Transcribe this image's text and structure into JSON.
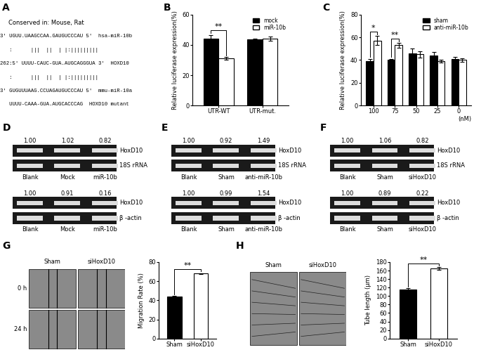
{
  "chart_data": [
    {
      "panel": "B",
      "type": "bar",
      "ylabel": "Relative luciferase expression(%)",
      "categories": [
        "UTR-WT",
        "UTR-mut."
      ],
      "series": [
        {
          "name": "mock",
          "color": "#000000",
          "values": [
            44,
            43.5
          ],
          "error": [
            2.5,
            0.8
          ]
        },
        {
          "name": "miR-10b",
          "color": "#ffffff",
          "values": [
            31,
            44
          ],
          "error": [
            1,
            1.5
          ]
        }
      ],
      "ylim": [
        0,
        60
      ],
      "yticks": [
        0,
        20,
        40,
        60
      ],
      "legend": "upper right",
      "annotations": [
        {
          "text": "**",
          "category": "UTR-WT"
        }
      ]
    },
    {
      "panel": "C",
      "type": "bar",
      "ylabel": "Relative luciferase expression(%)",
      "xlabel": "(nM)",
      "categories": [
        "100",
        "75",
        "50",
        "25",
        "0"
      ],
      "series": [
        {
          "name": "sham",
          "color": "#000000",
          "values": [
            39,
            40,
            46,
            44,
            41
          ],
          "error": [
            2,
            1,
            4,
            3,
            2
          ]
        },
        {
          "name": "anti-miR-10b",
          "color": "#ffffff",
          "values": [
            57,
            53,
            45,
            39,
            40
          ],
          "error": [
            4,
            2,
            3,
            1,
            1.5
          ]
        }
      ],
      "ylim": [
        0,
        80
      ],
      "yticks": [
        0,
        20,
        40,
        60,
        80
      ],
      "legend": "upper right",
      "annotations": [
        {
          "text": "*",
          "category": "100"
        },
        {
          "text": "**",
          "category": "75"
        }
      ]
    },
    {
      "panel": "G",
      "type": "bar",
      "ylabel": "Migration Rate (%)",
      "categories": [
        "Sham",
        "siHoxD10"
      ],
      "series": [
        {
          "colors": [
            "#000000",
            "#ffffff"
          ],
          "values": [
            44,
            68
          ],
          "error": [
            0.5,
            0.5
          ]
        }
      ],
      "ylim": [
        0,
        80
      ],
      "yticks": [
        0,
        20,
        40,
        60,
        80
      ],
      "annotations": [
        {
          "text": "**",
          "between": [
            "Sham",
            "siHoxD10"
          ]
        }
      ]
    },
    {
      "panel": "H",
      "type": "bar",
      "ylabel": "Tube length (μm)",
      "categories": [
        "Sham",
        "siHoxD10"
      ],
      "series": [
        {
          "colors": [
            "#000000",
            "#ffffff"
          ],
          "values": [
            115,
            165
          ],
          "error": [
            4,
            3
          ]
        }
      ],
      "ylim": [
        0,
        180
      ],
      "yticks": [
        0,
        20,
        40,
        60,
        80,
        100,
        120,
        140,
        160,
        180
      ],
      "annotations": [
        {
          "text": "**",
          "between": [
            "Sham",
            "siHoxD10"
          ]
        }
      ]
    }
  ],
  "alignment": {
    "panel": "A",
    "header": "Conserved in: Mouse, Rat",
    "lines": [
      {
        "sequence": "3' UGUU.UAAGCCAA.GAUGUCCCAU 5'",
        "name": "hsa-miR-10b"
      },
      {
        "sequence": "   :      |||  ||  | |:|||||||||",
        "name": ""
      },
      {
        "sequence": "262:5' UUUU-CAUC-GUA.AUGCAGGGUA 3'",
        "name": "HOXD10"
      },
      {
        "sequence": "   :      |||  ||  | |:|||||||||",
        "name": ""
      },
      {
        "sequence": "3' GUGUUUAAG.CCUAGAUGUCCCAU 5'",
        "name": "mmu-miR-10a"
      },
      {
        "sequence": "   UUUU-CAAA-GUA.AUGCACCCAG",
        "name": "HOXD10 mutant"
      }
    ]
  },
  "blots": [
    {
      "panel": "D",
      "lanes": [
        "Blank",
        "Mock",
        "miR-10b"
      ],
      "groups": [
        {
          "values": [
            1.0,
            1.02,
            0.82
          ],
          "value_labels": [
            "1.00",
            "1.02",
            "0.82"
          ],
          "rows": [
            "HoxD10",
            "18S rRNA"
          ]
        },
        {
          "values": [
            1.0,
            0.91,
            0.16
          ],
          "value_labels": [
            "1.00",
            "0.91",
            "0.16"
          ],
          "rows": [
            "HoxD10",
            "β -actin"
          ]
        }
      ]
    },
    {
      "panel": "E",
      "lanes": [
        "Blank",
        "Sham",
        "anti-miR-10b"
      ],
      "groups": [
        {
          "values": [
            1.0,
            0.92,
            1.49
          ],
          "value_labels": [
            "1.00",
            "0.92",
            "1.49"
          ],
          "rows": [
            "HoxD10",
            "18S rRNA"
          ]
        },
        {
          "values": [
            1.0,
            0.99,
            1.54
          ],
          "value_labels": [
            "1.00",
            "0.99",
            "1.54"
          ],
          "rows": [
            "HoxD10",
            "β -actin"
          ]
        }
      ]
    },
    {
      "panel": "F",
      "lanes": [
        "Blank",
        "Sham",
        "siHoxD10"
      ],
      "groups": [
        {
          "values": [
            1.0,
            1.06,
            0.82
          ],
          "value_labels": [
            "1.00",
            "1.06",
            "0.82"
          ],
          "rows": [
            "HoxD10",
            "18S rRNA"
          ]
        },
        {
          "values": [
            1.0,
            0.89,
            0.22
          ],
          "value_labels": [
            "1.00",
            "0.89",
            "0.22"
          ],
          "rows": [
            "HoxD10",
            "β -actin"
          ]
        }
      ]
    }
  ],
  "images": [
    {
      "panel": "G",
      "columns": [
        "Sham",
        "siHoxD10"
      ],
      "rows": [
        "0 h",
        "24 h"
      ]
    },
    {
      "panel": "H",
      "columns": [
        "Sham",
        "siHoxD10"
      ],
      "rows": []
    }
  ]
}
